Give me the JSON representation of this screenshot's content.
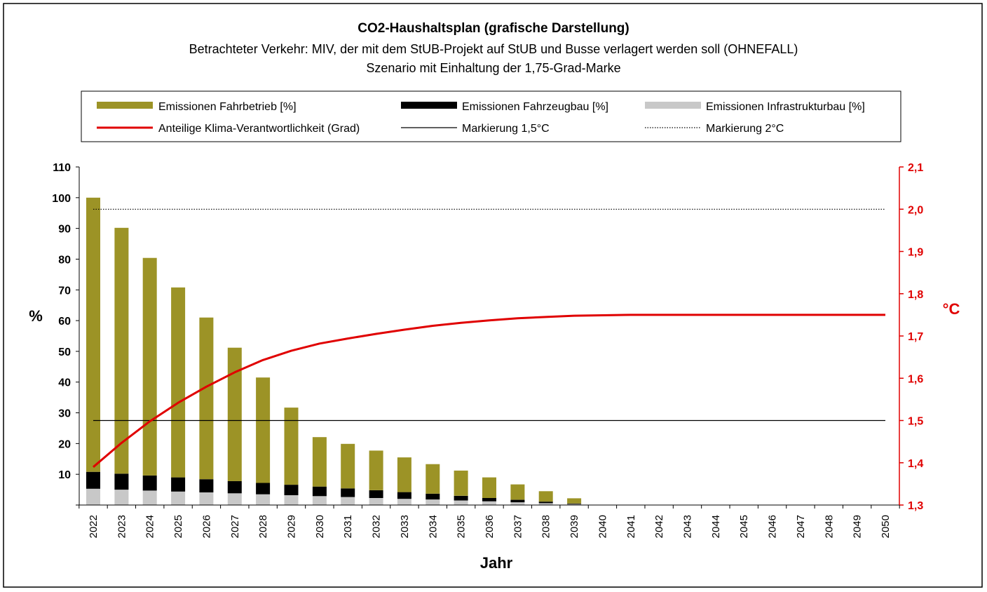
{
  "colors": {
    "fahrbetrieb": "#9c9326",
    "fahrzeugbau": "#000000",
    "infrastruktur": "#c8c8c8",
    "klima": "#e00000",
    "mark": "#000000"
  },
  "chart_data": {
    "type": "bar",
    "stacked": true,
    "title": "CO2-Haushaltsplan (grafische Darstellung)",
    "subtitle1": "Betrachteter Verkehr: MIV, der mit dem StUB-Projekt auf StUB und Busse verlagert werden soll (OHNEFALL)",
    "subtitle2": "Szenario mit Einhaltung der 1,75-Grad-Marke",
    "xlabel": "Jahr",
    "ylabel": "%",
    "ylabel_right": "°C",
    "ylim": [
      0,
      110
    ],
    "ylim_right": [
      1.3,
      2.1
    ],
    "yticks": [
      "10",
      "20",
      "30",
      "40",
      "50",
      "60",
      "70",
      "80",
      "90",
      "100",
      "110"
    ],
    "yticks_right": [
      "1,3",
      "1,4",
      "1,5",
      "1,6",
      "1,7",
      "1,8",
      "1,9",
      "2,0",
      "2,1"
    ],
    "categories": [
      "2022",
      "2023",
      "2024",
      "2025",
      "2026",
      "2027",
      "2028",
      "2029",
      "2030",
      "2031",
      "2032",
      "2033",
      "2034",
      "2035",
      "2036",
      "2037",
      "2038",
      "2039",
      "2040",
      "2041",
      "2042",
      "2043",
      "2044",
      "2045",
      "2046",
      "2047",
      "2048",
      "2049",
      "2050"
    ],
    "legend": {
      "fahrbetrieb": "Emissionen Fahrbetrieb [%]",
      "fahrzeugbau": "Emissionen Fahrzeugbau [%]",
      "infrastruktur": "Emissionen Infrastrukturbau [%]",
      "klima": "Anteilige Klima-Verantwortlichkeit (Grad)",
      "mark15": "Markierung 1,5°C",
      "mark2": "Markierung 2°C"
    },
    "series": [
      {
        "name": "Emissionen Infrastrukturbau [%]",
        "key": "infrastruktur",
        "values": [
          5.3,
          5.0,
          4.7,
          4.4,
          4.1,
          3.8,
          3.5,
          3.2,
          2.9,
          2.6,
          2.3,
          2.0,
          1.8,
          1.5,
          1.2,
          0.9,
          0.6,
          0.3,
          0,
          0,
          0,
          0,
          0,
          0,
          0,
          0,
          0,
          0,
          0
        ]
      },
      {
        "name": "Emissionen Fahrzeugbau [%]",
        "key": "fahrzeugbau",
        "values": [
          5.5,
          5.2,
          4.9,
          4.6,
          4.3,
          4.0,
          3.7,
          3.4,
          3.1,
          2.8,
          2.5,
          2.2,
          1.9,
          1.5,
          1.1,
          0.8,
          0.5,
          0.2,
          0,
          0,
          0,
          0,
          0,
          0,
          0,
          0,
          0,
          0,
          0
        ]
      },
      {
        "name": "Emissionen Fahrbetrieb [%]",
        "key": "fahrbetrieb",
        "values": [
          89.2,
          80.0,
          70.8,
          61.8,
          52.6,
          43.4,
          34.3,
          25.1,
          16.1,
          14.5,
          12.9,
          11.3,
          9.6,
          8.2,
          6.7,
          5.0,
          3.4,
          1.7,
          0,
          0,
          0,
          0,
          0,
          0,
          0,
          0,
          0,
          0,
          0
        ]
      }
    ],
    "line": {
      "name": "Anteilige Klima-Verantwortlichkeit (Grad)",
      "axis": "right",
      "values": [
        1.39,
        1.447,
        1.498,
        1.542,
        1.58,
        1.614,
        1.643,
        1.665,
        1.682,
        1.694,
        1.705,
        1.715,
        1.724,
        1.731,
        1.737,
        1.742,
        1.745,
        1.748,
        1.749,
        1.75,
        1.75,
        1.75,
        1.75,
        1.75,
        1.75,
        1.75,
        1.75,
        1.75,
        1.75
      ]
    },
    "reference_lines": [
      {
        "name": "Markierung 1,5°C",
        "value": 1.5,
        "axis": "right",
        "style": "solid"
      },
      {
        "name": "Markierung 2°C",
        "value": 2.0,
        "axis": "right",
        "style": "dotted"
      }
    ]
  }
}
